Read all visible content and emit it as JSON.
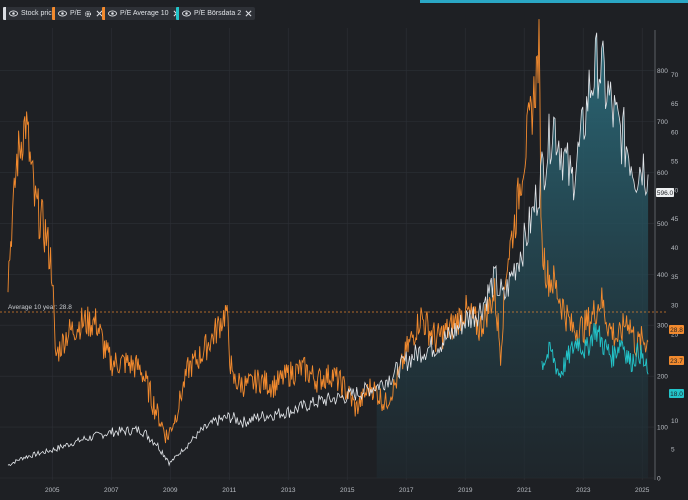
{
  "legend": [
    {
      "label": "Stock price",
      "color": "#d8dbe0",
      "closable": false
    },
    {
      "label": "P/E",
      "color": "#f28a2e",
      "closable": true,
      "gear": true
    },
    {
      "label": "P/E Average 10",
      "color": "#f28a2e",
      "closable": true
    },
    {
      "label": "P/E Börsdata 2",
      "color": "#23c4c9",
      "closable": true
    }
  ],
  "average_label": "Average 10 year: 28.8",
  "badges": {
    "price": "596.0",
    "pe_avg": "28.8",
    "pe": "23.7",
    "pe_borsdata": "18.0"
  },
  "colors": {
    "price": "#dfe2e6",
    "pe": "#f28a2e",
    "borsdata": "#23c4c9",
    "area_top": "#2a6a7a",
    "background": "#1e2024"
  },
  "chart_data": {
    "type": "line",
    "x_ticks": [
      "2005",
      "2007",
      "2009",
      "2011",
      "2013",
      "2015",
      "2017",
      "2019",
      "2021",
      "2023",
      "2025"
    ],
    "left_axis_ticks": [
      "70",
      "65",
      "60",
      "55",
      "50",
      "45",
      "40",
      "35",
      "30",
      "25",
      "20",
      "15",
      "10",
      "5"
    ],
    "right_axis_ticks": [
      "800",
      "700",
      "600",
      "500",
      "400",
      "300",
      "200",
      "100",
      "0"
    ],
    "right_axis_range": [
      0,
      860
    ],
    "left_axis_range": [
      0,
      76
    ],
    "pe_average_10y": 28.8,
    "series": [
      {
        "name": "Stock price",
        "axis": "right",
        "points": [
          [
            2003.5,
            25
          ],
          [
            2004,
            40
          ],
          [
            2005,
            55
          ],
          [
            2006,
            75
          ],
          [
            2007,
            90
          ],
          [
            2008,
            95
          ],
          [
            2008.5,
            70
          ],
          [
            2009,
            30
          ],
          [
            2009.5,
            60
          ],
          [
            2010,
            90
          ],
          [
            2010.5,
            110
          ],
          [
            2011,
            120
          ],
          [
            2011.5,
            110
          ],
          [
            2012,
            120
          ],
          [
            2013,
            130
          ],
          [
            2014,
            150
          ],
          [
            2015,
            160
          ],
          [
            2016,
            180
          ],
          [
            2016.5,
            200
          ],
          [
            2017,
            230
          ],
          [
            2017.5,
            250
          ],
          [
            2018,
            260
          ],
          [
            2018.5,
            280
          ],
          [
            2019,
            310
          ],
          [
            2019.5,
            330
          ],
          [
            2020,
            390
          ],
          [
            2020.3,
            350
          ],
          [
            2020.7,
            420
          ],
          [
            2021,
            460
          ],
          [
            2021.3,
            520
          ],
          [
            2021.6,
            600
          ],
          [
            2022,
            700
          ],
          [
            2022.3,
            640
          ],
          [
            2022.6,
            580
          ],
          [
            2022.9,
            650
          ],
          [
            2023.2,
            760
          ],
          [
            2023.5,
            820
          ],
          [
            2023.8,
            760
          ],
          [
            2024.1,
            700
          ],
          [
            2024.5,
            650
          ],
          [
            2024.8,
            600
          ],
          [
            2025,
            620
          ],
          [
            2025.2,
            596
          ]
        ]
      },
      {
        "name": "P/E",
        "axis": "left",
        "points": [
          [
            2003.5,
            35
          ],
          [
            2003.8,
            55
          ],
          [
            2004.1,
            62
          ],
          [
            2004.4,
            48
          ],
          [
            2004.8,
            42
          ],
          [
            2005,
            36
          ],
          [
            2005.1,
            21
          ],
          [
            2005.5,
            25
          ],
          [
            2006,
            27
          ],
          [
            2006.5,
            27
          ],
          [
            2006.8,
            22
          ],
          [
            2007,
            20
          ],
          [
            2007.5,
            20
          ],
          [
            2008,
            19
          ],
          [
            2008.5,
            12
          ],
          [
            2008.9,
            7
          ],
          [
            2009.2,
            11
          ],
          [
            2009.6,
            19
          ],
          [
            2010,
            21
          ],
          [
            2010.5,
            25
          ],
          [
            2010.9,
            29
          ],
          [
            2011.1,
            17
          ],
          [
            2011.6,
            16
          ],
          [
            2012,
            17
          ],
          [
            2012.5,
            16
          ],
          [
            2013,
            18
          ],
          [
            2013.5,
            19
          ],
          [
            2014,
            17
          ],
          [
            2014.5,
            18
          ],
          [
            2015,
            15
          ],
          [
            2015.3,
            12
          ],
          [
            2015.8,
            16
          ],
          [
            2016.3,
            13
          ],
          [
            2016.7,
            17
          ],
          [
            2017,
            22
          ],
          [
            2017.5,
            28
          ],
          [
            2018,
            24
          ],
          [
            2018.5,
            26
          ],
          [
            2019,
            29
          ],
          [
            2019.5,
            26
          ],
          [
            2020,
            32
          ],
          [
            2020.2,
            22
          ],
          [
            2020.4,
            37
          ],
          [
            2020.7,
            45
          ],
          [
            2021,
            56
          ],
          [
            2021.3,
            65
          ],
          [
            2021.5,
            74
          ],
          [
            2021.6,
            40
          ],
          [
            2021.8,
            35
          ],
          [
            2022,
            34
          ],
          [
            2022.3,
            30
          ],
          [
            2022.6,
            26
          ],
          [
            2023,
            26
          ],
          [
            2023.3,
            28
          ],
          [
            2023.6,
            31
          ],
          [
            2023.9,
            26
          ],
          [
            2024.2,
            24
          ],
          [
            2024.5,
            28
          ],
          [
            2024.8,
            23
          ],
          [
            2025,
            24
          ],
          [
            2025.2,
            23.7
          ]
        ]
      },
      {
        "name": "P/E Börsdata 2",
        "axis": "left",
        "points": [
          [
            2021.6,
            20
          ],
          [
            2021.9,
            22
          ],
          [
            2022.2,
            18
          ],
          [
            2022.5,
            21
          ],
          [
            2022.8,
            24
          ],
          [
            2023.1,
            22
          ],
          [
            2023.4,
            26
          ],
          [
            2023.7,
            23
          ],
          [
            2024,
            21
          ],
          [
            2024.3,
            24
          ],
          [
            2024.6,
            20
          ],
          [
            2024.9,
            22
          ],
          [
            2025.2,
            18
          ]
        ]
      }
    ]
  }
}
